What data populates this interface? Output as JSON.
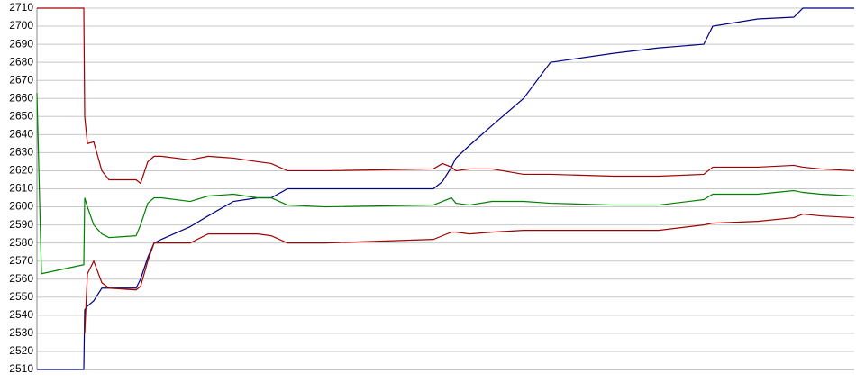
{
  "chart_data": {
    "type": "line",
    "x": [
      0,
      5,
      52,
      53,
      56,
      63,
      72,
      80,
      110,
      115,
      123,
      130,
      138,
      170,
      190,
      218,
      245,
      260,
      278,
      320,
      440,
      450,
      460,
      465,
      480,
      505,
      540,
      570,
      640,
      690,
      740,
      750,
      800,
      840,
      850,
      870,
      907
    ],
    "xlim": [
      0,
      907
    ],
    "ylim": [
      2510,
      2710
    ],
    "yticks": [
      2510,
      2520,
      2530,
      2540,
      2550,
      2560,
      2570,
      2580,
      2590,
      2600,
      2610,
      2620,
      2630,
      2640,
      2650,
      2660,
      2670,
      2680,
      2690,
      2700,
      2710
    ],
    "grid": true,
    "series": [
      {
        "color": "#000080",
        "values": [
          2510,
          2510,
          2510,
          2543,
          2545,
          2548,
          2555,
          2555,
          2555,
          2560,
          2572,
          2580,
          2582,
          2589,
          2595,
          2603,
          2605,
          2605,
          2610,
          2610,
          2610,
          2614,
          2622,
          2627,
          2634,
          2645,
          2660,
          2680,
          2685,
          2688,
          2690,
          2700,
          2704,
          2705,
          2710,
          2710,
          2710
        ]
      },
      {
        "color": "#008000",
        "values": [
          2663,
          2563,
          2568,
          2605,
          2600,
          2590,
          2585,
          2583,
          2584,
          2590,
          2602,
          2605,
          2605,
          2603,
          2606,
          2607,
          2605,
          2605,
          2601,
          2600,
          2601,
          2603,
          2605,
          2602,
          2601,
          2603,
          2603,
          2602,
          2601,
          2601,
          2604,
          2607,
          2607,
          2609,
          2608,
          2607,
          2606
        ]
      },
      {
        "color": "#a00000",
        "values": [
          2710,
          2710,
          2710,
          2650,
          2635,
          2636,
          2620,
          2615,
          2615,
          2613,
          2625,
          2628,
          2628,
          2626,
          2628,
          2627,
          2625,
          2624,
          2620,
          2620,
          2621,
          2624,
          2622,
          2620,
          2621,
          2621,
          2618,
          2618,
          2617,
          2617,
          2618,
          2622,
          2622,
          2623,
          2622,
          2621,
          2620
        ]
      },
      {
        "color": "#a00000",
        "values": [
          null,
          null,
          null,
          2530,
          2563,
          2570,
          2558,
          2555,
          2554,
          2556,
          2570,
          2580,
          2580,
          2580,
          2585,
          2585,
          2585,
          2584,
          2580,
          2580,
          2582,
          2584,
          2586,
          2586,
          2585,
          2586,
          2587,
          2587,
          2587,
          2587,
          2590,
          2591,
          2592,
          2594,
          2596,
          2595,
          2594
        ]
      }
    ]
  }
}
